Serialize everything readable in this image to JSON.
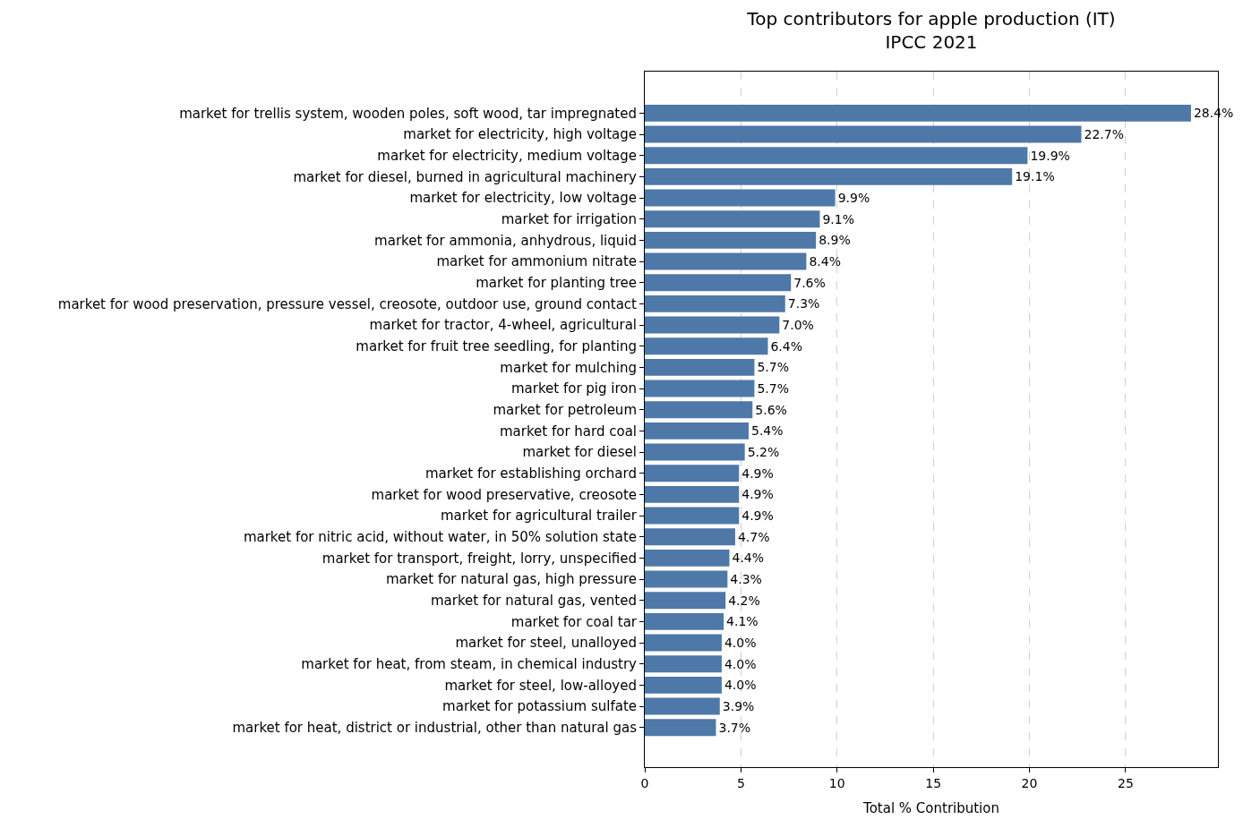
{
  "chart_data": {
    "type": "bar",
    "orientation": "horizontal",
    "title": "Top contributors for apple production (IT)\nIPCC 2021",
    "xlabel": "Total % Contribution",
    "categories": [
      "market for trellis system, wooden poles, soft wood, tar impregnated",
      "market for electricity, high voltage",
      "market for electricity, medium voltage",
      "market for diesel, burned in agricultural machinery",
      "market for electricity, low voltage",
      "market for irrigation",
      "market for ammonia, anhydrous, liquid",
      "market for ammonium nitrate",
      "market for planting tree",
      "market for wood preservation, pressure vessel, creosote, outdoor use, ground contact",
      "market for tractor, 4-wheel, agricultural",
      "market for fruit tree seedling, for planting",
      "market for mulching",
      "market for pig iron",
      "market for petroleum",
      "market for hard coal",
      "market for diesel",
      "market for establishing orchard",
      "market for wood preservative, creosote",
      "market for agricultural trailer",
      "market for nitric acid, without water, in 50% solution state",
      "market for transport, freight, lorry, unspecified",
      "market for natural gas, high pressure",
      "market for natural gas, vented",
      "market for coal tar",
      "market for steel, unalloyed",
      "market for heat, from steam, in chemical industry",
      "market for steel, low-alloyed",
      "market for potassium sulfate",
      "market for heat, district or industrial, other than natural gas"
    ],
    "values": [
      28.4,
      22.7,
      19.9,
      19.1,
      9.9,
      9.1,
      8.9,
      8.4,
      7.6,
      7.3,
      7.0,
      6.4,
      5.7,
      5.7,
      5.6,
      5.4,
      5.2,
      4.9,
      4.9,
      4.9,
      4.7,
      4.4,
      4.3,
      4.2,
      4.1,
      4.0,
      4.0,
      4.0,
      3.9,
      3.7
    ],
    "value_labels": [
      "28.4%",
      "22.7%",
      "19.9%",
      "19.1%",
      "9.9%",
      "9.1%",
      "8.9%",
      "8.4%",
      "7.6%",
      "7.3%",
      "7.0%",
      "6.4%",
      "5.7%",
      "5.7%",
      "5.6%",
      "5.4%",
      "5.2%",
      "4.9%",
      "4.9%",
      "4.9%",
      "4.7%",
      "4.4%",
      "4.3%",
      "4.2%",
      "4.1%",
      "4.0%",
      "4.0%",
      "4.0%",
      "3.9%",
      "3.7%"
    ],
    "color": "#4e78a8",
    "xlim": [
      0,
      29.8
    ],
    "xticks": [
      0,
      5,
      10,
      15,
      20,
      25
    ],
    "grid": "x",
    "legend": false
  }
}
